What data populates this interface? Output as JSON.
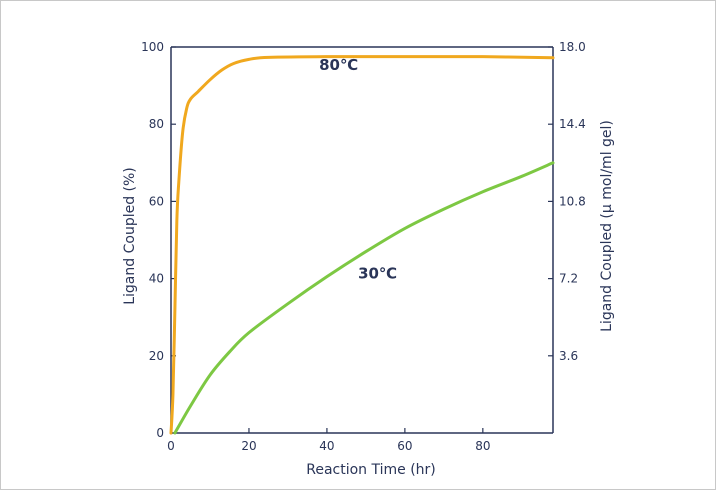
{
  "chart_data": {
    "type": "line",
    "xlabel": "Reaction Time (hr)",
    "ylabel": "Ligand Coupled (%)",
    "y2label": "Ligand Coupled (μ mol/ml gel)",
    "xlim": [
      0,
      98
    ],
    "ylim": [
      0,
      100
    ],
    "y2lim": [
      0,
      18.0
    ],
    "x_ticks": [
      "0",
      "20",
      "40",
      "60",
      "80"
    ],
    "x_tick_values": [
      0,
      20,
      40,
      60,
      80
    ],
    "y_ticks": [
      "0",
      "20",
      "40",
      "60",
      "80",
      "100"
    ],
    "y_tick_values": [
      0,
      20,
      40,
      60,
      80,
      100
    ],
    "y2_ticks": [
      "3.6",
      "7.2",
      "10.8",
      "14.4",
      "18.0"
    ],
    "y2_tick_values": [
      3.6,
      7.2,
      10.8,
      14.4,
      18.0
    ],
    "grid": false,
    "series": [
      {
        "name": "80℃",
        "color": "#f0a81e",
        "points": [
          [
            0,
            0
          ],
          [
            0.5,
            10
          ],
          [
            1,
            32
          ],
          [
            1.5,
            55
          ],
          [
            2,
            65
          ],
          [
            3,
            78
          ],
          [
            4,
            84
          ],
          [
            5,
            86.5
          ],
          [
            7,
            88.5
          ],
          [
            10,
            91.5
          ],
          [
            13,
            94
          ],
          [
            16,
            95.7
          ],
          [
            20,
            96.8
          ],
          [
            25,
            97.3
          ],
          [
            40,
            97.5
          ],
          [
            60,
            97.5
          ],
          [
            80,
            97.5
          ],
          [
            98,
            97.2
          ]
        ],
        "label_at": [
          43,
          94
        ]
      },
      {
        "name": "30℃",
        "color": "#7dc843",
        "points": [
          [
            1,
            0
          ],
          [
            5,
            7
          ],
          [
            10,
            15
          ],
          [
            15,
            21
          ],
          [
            20,
            26
          ],
          [
            30,
            33.5
          ],
          [
            40,
            40.5
          ],
          [
            50,
            47
          ],
          [
            60,
            53
          ],
          [
            70,
            58
          ],
          [
            80,
            62.5
          ],
          [
            90,
            66.5
          ],
          [
            98,
            70
          ]
        ],
        "label_at": [
          53,
          40
        ]
      }
    ]
  }
}
